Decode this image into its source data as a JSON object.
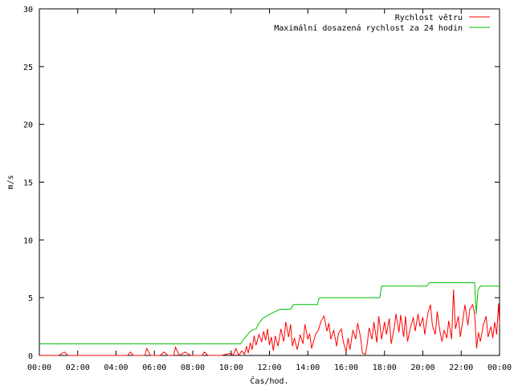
{
  "chart_data": {
    "type": "line",
    "xlabel": "Čas/hod.",
    "ylabel": "m/s",
    "xlim": [
      0,
      24
    ],
    "ylim": [
      0,
      30
    ],
    "x_ticks": [
      "00:00",
      "02:00",
      "04:00",
      "06:00",
      "08:00",
      "10:00",
      "12:00",
      "14:00",
      "16:00",
      "18:00",
      "20:00",
      "22:00",
      "00:00"
    ],
    "y_ticks": [
      "0",
      "5",
      "10",
      "15",
      "20",
      "25",
      "30"
    ],
    "legend_position": "top-right",
    "grid": false,
    "series": [
      {
        "name": "Rychlost větru",
        "color": "#ff0000",
        "points": [
          [
            0,
            0
          ],
          [
            0.5,
            0
          ],
          [
            1.0,
            0
          ],
          [
            1.3,
            0.3
          ],
          [
            1.5,
            0
          ],
          [
            2.5,
            0
          ],
          [
            3.5,
            0
          ],
          [
            4.6,
            0
          ],
          [
            4.75,
            0.3
          ],
          [
            4.9,
            0
          ],
          [
            5.5,
            0
          ],
          [
            5.6,
            0.6
          ],
          [
            5.8,
            0
          ],
          [
            6.3,
            0
          ],
          [
            6.5,
            0.3
          ],
          [
            6.7,
            0
          ],
          [
            7.0,
            0
          ],
          [
            7.1,
            0.7
          ],
          [
            7.3,
            0
          ],
          [
            7.6,
            0.3
          ],
          [
            7.9,
            0
          ],
          [
            8.5,
            0
          ],
          [
            8.6,
            0.3
          ],
          [
            8.8,
            0
          ],
          [
            9.5,
            0
          ],
          [
            10.0,
            0.2
          ],
          [
            10.1,
            0
          ],
          [
            10.25,
            0.6
          ],
          [
            10.4,
            0
          ],
          [
            10.55,
            0.4
          ],
          [
            10.7,
            0.1
          ],
          [
            10.8,
            0.8
          ],
          [
            10.9,
            0.2
          ],
          [
            11.0,
            1.1
          ],
          [
            11.1,
            0.5
          ],
          [
            11.2,
            1.7
          ],
          [
            11.3,
            0.9
          ],
          [
            11.45,
            1.8
          ],
          [
            11.6,
            1.2
          ],
          [
            11.7,
            2.1
          ],
          [
            11.8,
            1.3
          ],
          [
            11.9,
            2.3
          ],
          [
            12.0,
            0.9
          ],
          [
            12.1,
            1.6
          ],
          [
            12.2,
            0.4
          ],
          [
            12.3,
            1.7
          ],
          [
            12.45,
            0.8
          ],
          [
            12.6,
            2.3
          ],
          [
            12.75,
            1.2
          ],
          [
            12.85,
            2.9
          ],
          [
            13.0,
            1.6
          ],
          [
            13.1,
            2.7
          ],
          [
            13.2,
            0.8
          ],
          [
            13.3,
            1.5
          ],
          [
            13.45,
            0.5
          ],
          [
            13.6,
            1.8
          ],
          [
            13.75,
            1.0
          ],
          [
            13.85,
            2.7
          ],
          [
            14.0,
            1.4
          ],
          [
            14.1,
            1.9
          ],
          [
            14.2,
            0.6
          ],
          [
            14.4,
            1.8
          ],
          [
            14.55,
            2.2
          ],
          [
            14.7,
            3.0
          ],
          [
            14.85,
            3.4
          ],
          [
            15.0,
            2.1
          ],
          [
            15.1,
            2.8
          ],
          [
            15.2,
            1.4
          ],
          [
            15.35,
            2.2
          ],
          [
            15.5,
            0.8
          ],
          [
            15.6,
            1.9
          ],
          [
            15.75,
            2.3
          ],
          [
            15.85,
            1.2
          ],
          [
            16.0,
            0.3
          ],
          [
            16.1,
            1.5
          ],
          [
            16.2,
            0.5
          ],
          [
            16.35,
            2.2
          ],
          [
            16.5,
            1.4
          ],
          [
            16.6,
            2.8
          ],
          [
            16.75,
            1.6
          ],
          [
            16.85,
            0.2
          ],
          [
            17.0,
            0.1
          ],
          [
            17.1,
            1.0
          ],
          [
            17.2,
            2.4
          ],
          [
            17.35,
            1.4
          ],
          [
            17.45,
            2.9
          ],
          [
            17.6,
            1.1
          ],
          [
            17.7,
            3.4
          ],
          [
            17.85,
            1.4
          ],
          [
            18.0,
            2.9
          ],
          [
            18.1,
            1.8
          ],
          [
            18.25,
            3.2
          ],
          [
            18.35,
            1.0
          ],
          [
            18.5,
            2.3
          ],
          [
            18.6,
            3.6
          ],
          [
            18.75,
            2.0
          ],
          [
            18.85,
            3.5
          ],
          [
            19.0,
            1.6
          ],
          [
            19.1,
            3.4
          ],
          [
            19.2,
            1.2
          ],
          [
            19.35,
            2.4
          ],
          [
            19.5,
            3.3
          ],
          [
            19.6,
            2.1
          ],
          [
            19.75,
            3.6
          ],
          [
            19.85,
            2.5
          ],
          [
            20.0,
            3.3
          ],
          [
            20.1,
            1.8
          ],
          [
            20.25,
            3.6
          ],
          [
            20.4,
            4.4
          ],
          [
            20.5,
            2.6
          ],
          [
            20.65,
            1.8
          ],
          [
            20.75,
            3.8
          ],
          [
            20.9,
            2.0
          ],
          [
            21.0,
            1.2
          ],
          [
            21.1,
            2.2
          ],
          [
            21.25,
            1.5
          ],
          [
            21.35,
            3.0
          ],
          [
            21.5,
            1.4
          ],
          [
            21.6,
            5.7
          ],
          [
            21.7,
            2.3
          ],
          [
            21.85,
            3.4
          ],
          [
            21.95,
            1.6
          ],
          [
            22.1,
            3.2
          ],
          [
            22.2,
            4.4
          ],
          [
            22.35,
            2.6
          ],
          [
            22.45,
            4.0
          ],
          [
            22.6,
            4.4
          ],
          [
            22.7,
            3.6
          ],
          [
            22.8,
            0.6
          ],
          [
            22.9,
            2.0
          ],
          [
            23.0,
            1.2
          ],
          [
            23.15,
            2.6
          ],
          [
            23.3,
            3.4
          ],
          [
            23.4,
            1.6
          ],
          [
            23.55,
            2.5
          ],
          [
            23.65,
            1.5
          ],
          [
            23.75,
            2.9
          ],
          [
            23.85,
            1.8
          ],
          [
            23.95,
            4.5
          ],
          [
            24.0,
            2.7
          ]
        ]
      },
      {
        "name": "Maximální dosazená rychlost za 24 hodin",
        "color": "#00c000",
        "points": [
          [
            0,
            1.0
          ],
          [
            10.5,
            1.0
          ],
          [
            10.65,
            1.4
          ],
          [
            10.8,
            1.7
          ],
          [
            10.95,
            2.0
          ],
          [
            11.1,
            2.2
          ],
          [
            11.3,
            2.3
          ],
          [
            11.45,
            2.8
          ],
          [
            11.65,
            3.2
          ],
          [
            11.85,
            3.4
          ],
          [
            12.05,
            3.6
          ],
          [
            12.3,
            3.8
          ],
          [
            12.55,
            4.0
          ],
          [
            13.1,
            4.0
          ],
          [
            13.25,
            4.4
          ],
          [
            14.5,
            4.4
          ],
          [
            14.6,
            5.0
          ],
          [
            17.75,
            5.0
          ],
          [
            17.85,
            6.0
          ],
          [
            20.2,
            6.0
          ],
          [
            20.35,
            6.3
          ],
          [
            22.7,
            6.3
          ],
          [
            22.78,
            3.6
          ],
          [
            22.88,
            5.7
          ],
          [
            23.0,
            6.0
          ],
          [
            24.0,
            6.0
          ]
        ]
      }
    ]
  }
}
